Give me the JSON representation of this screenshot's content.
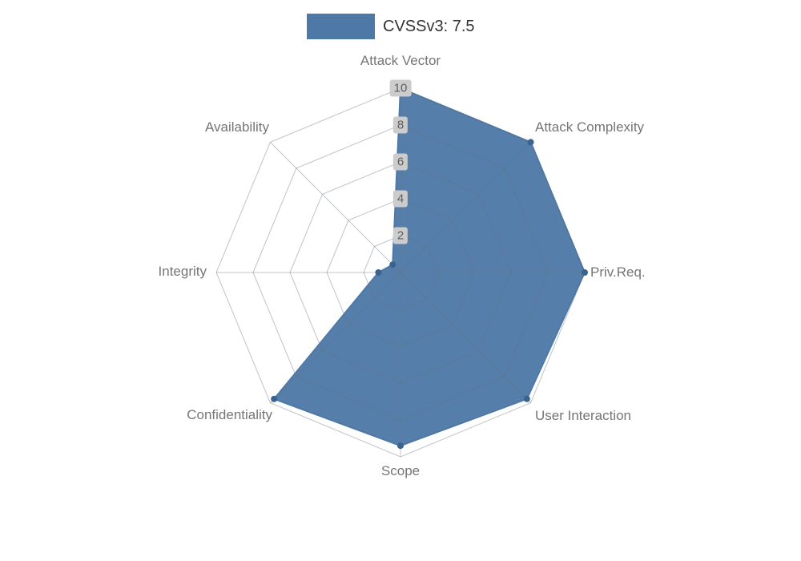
{
  "legend": {
    "label": "CVSSv3: 7.5",
    "swatch_color": "#4e79a7"
  },
  "chart_data": {
    "type": "radar",
    "title": "CVSSv3: 7.5",
    "categories": [
      "Attack Vector",
      "Attack Complexity",
      "Priv.Req.",
      "User Interaction",
      "Scope",
      "Confidentiality",
      "Integrity",
      "Availability"
    ],
    "series": [
      {
        "name": "CVSSv3: 7.5",
        "values": [
          10,
          10,
          10,
          9.7,
          9.4,
          9.7,
          1.2,
          0.6
        ]
      }
    ],
    "ticks": [
      2,
      4,
      6,
      8,
      10
    ],
    "max": 10,
    "grid": "spider-web",
    "legend_position": "top-center",
    "fill_color": "#4e79a7",
    "marker_color": "#3a648e",
    "grid_color": "rgba(105,115,125,0.42)",
    "label_color": "#757575",
    "tick_color": "#5f5f5f",
    "tick_bg": "#cccccc"
  }
}
